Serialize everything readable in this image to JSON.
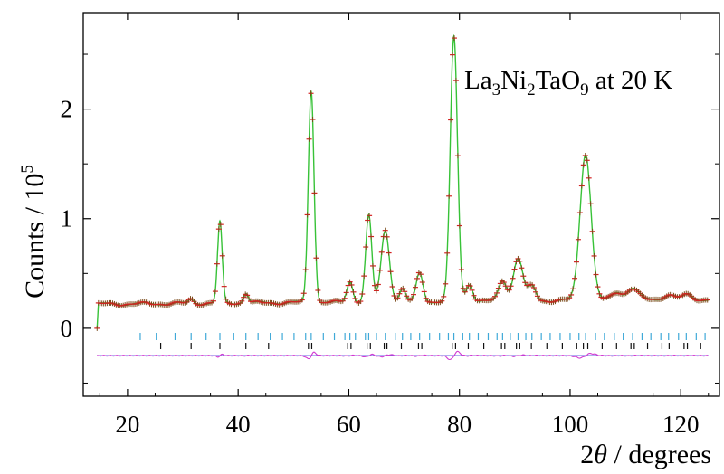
{
  "chart_data": {
    "type": "line",
    "annotation": {
      "formula_parts": [
        "La",
        "3",
        "Ni",
        "2",
        "TaO",
        "9"
      ],
      "suffix": " at 20 K"
    },
    "xlabel": {
      "prefix": "2",
      "italic": "θ",
      "suffix": " / degrees"
    },
    "ylabel": {
      "text": "Counts / 10",
      "sup": "5"
    },
    "xlim": [
      12,
      127
    ],
    "ylim": [
      -0.62,
      2.88
    ],
    "x_ticks": [
      20,
      40,
      60,
      80,
      100,
      120
    ],
    "x_tick_labels": [
      "20",
      "40",
      "60",
      "80",
      "100",
      "120"
    ],
    "y_ticks": [
      0,
      1,
      2
    ],
    "y_tick_labels": [
      "0",
      "1",
      "2"
    ],
    "grid": false,
    "baseline": 0.22,
    "peaks": [
      {
        "x": 31.5,
        "h": 0.04,
        "w": 0.45
      },
      {
        "x": 36.7,
        "h": 0.74,
        "w": 0.42
      },
      {
        "x": 41.4,
        "h": 0.09,
        "w": 0.45
      },
      {
        "x": 53.2,
        "h": 1.93,
        "w": 0.52
      },
      {
        "x": 60.2,
        "h": 0.19,
        "w": 0.55
      },
      {
        "x": 63.6,
        "h": 0.79,
        "w": 0.55
      },
      {
        "x": 66.6,
        "h": 0.65,
        "w": 0.75
      },
      {
        "x": 69.7,
        "h": 0.12,
        "w": 0.55
      },
      {
        "x": 72.8,
        "h": 0.26,
        "w": 0.6
      },
      {
        "x": 79.0,
        "h": 2.41,
        "w": 0.65
      },
      {
        "x": 81.8,
        "h": 0.16,
        "w": 0.6
      },
      {
        "x": 87.8,
        "h": 0.19,
        "w": 0.7
      },
      {
        "x": 90.6,
        "h": 0.39,
        "w": 0.85
      },
      {
        "x": 93.1,
        "h": 0.13,
        "w": 0.7
      },
      {
        "x": 102.8,
        "h": 1.34,
        "w": 1.0
      },
      {
        "x": 108.5,
        "h": 0.07,
        "w": 0.9
      },
      {
        "x": 111.3,
        "h": 0.11,
        "w": 1.0
      },
      {
        "x": 117.8,
        "h": 0.05,
        "w": 0.9
      },
      {
        "x": 121.0,
        "h": 0.04,
        "w": 0.9
      }
    ],
    "data_range": [
      14.5,
      125.0
    ],
    "reflections_phase1": [
      22.3,
      25.2,
      28.6,
      31.5,
      34.2,
      36.7,
      39.2,
      41.4,
      43.6,
      45.8,
      48.0,
      50.1,
      52.2,
      53.2,
      55.4,
      57.4,
      59.3,
      60.2,
      61.2,
      63.0,
      63.6,
      65.0,
      66.6,
      68.4,
      69.7,
      71.2,
      72.8,
      74.6,
      76.4,
      78.0,
      79.0,
      80.6,
      81.8,
      83.4,
      85.2,
      86.8,
      87.8,
      89.2,
      90.6,
      92.0,
      93.1,
      94.8,
      96.4,
      98.2,
      100.0,
      101.6,
      102.8,
      104.6,
      106.2,
      108.0,
      109.6,
      111.3,
      113.0,
      114.6,
      116.4,
      117.8,
      119.6,
      121.0,
      122.8,
      124.4
    ],
    "reflections_phase2": [
      26.0,
      31.5,
      36.7,
      41.4,
      45.5,
      52.7,
      53.3,
      59.8,
      60.4,
      63.3,
      63.9,
      66.4,
      66.9,
      69.5,
      72.6,
      73.2,
      78.7,
      79.3,
      81.6,
      84.4,
      87.6,
      88.2,
      90.3,
      90.9,
      93.0,
      95.8,
      98.6,
      101.2,
      102.4,
      103.2,
      105.8,
      108.4,
      111.0,
      111.6,
      114.0,
      116.6,
      117.9,
      120.6,
      121.2,
      123.6
    ],
    "difference_offset": -0.25,
    "colors": {
      "observed": "#d42222",
      "observed_cross": "#7a4a1a",
      "calculated": "#38c238",
      "reflections_phase1": "#3fa9d8",
      "reflections_phase2": "#111111",
      "difference": "#d23ad2",
      "difference_baseline": "#2b2bd8"
    }
  }
}
